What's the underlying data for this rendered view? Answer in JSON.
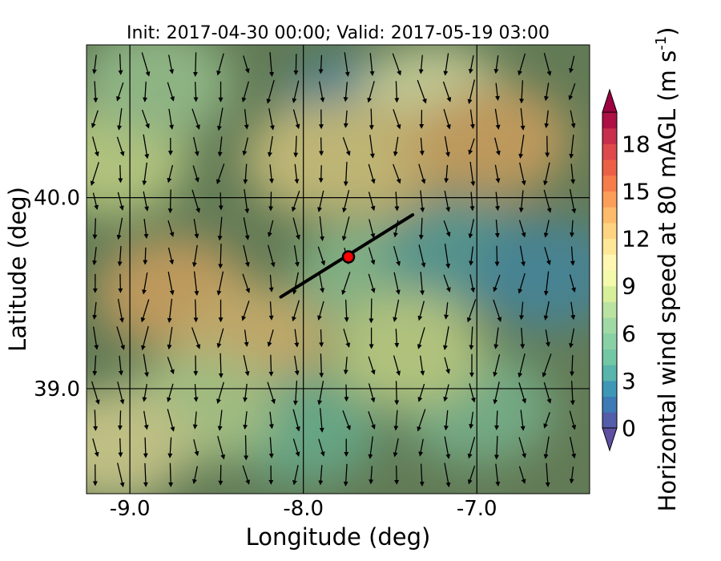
{
  "chart_data": {
    "type": "heatmap",
    "title": "Init: 2017-04-30 00:00; Valid: 2017-05-19 03:00",
    "xlabel": "Longitude (deg)",
    "ylabel": "Latitude (deg)",
    "xlim": [
      -9.25,
      -6.35
    ],
    "ylim": [
      38.45,
      40.8
    ],
    "x_ticks": [
      -9.0,
      -8.0,
      -7.0
    ],
    "x_tick_labels": [
      "-9.0",
      "-8.0",
      "-7.0"
    ],
    "y_ticks": [
      39.0,
      40.0
    ],
    "y_tick_labels": [
      "39.0",
      "40.0"
    ],
    "grid": true,
    "colorbar": {
      "label": "Horizontal wind speed at 80 mAGL (m s",
      "label_sup": "-1",
      "label_close": ")",
      "min": 0,
      "max": 20,
      "step": 1,
      "extend": "both",
      "ticks": [
        0,
        3,
        6,
        9,
        12,
        15,
        18
      ],
      "tick_labels": [
        "0",
        "3",
        "6",
        "9",
        "12",
        "15",
        "18"
      ],
      "colormap": "Spectral_r"
    },
    "transect": {
      "start": [
        -8.13,
        39.48
      ],
      "end": [
        -7.37,
        39.91
      ],
      "color": "#000000"
    },
    "site_marker": {
      "lon": -7.74,
      "lat": 39.69,
      "fill": "#ff0000",
      "edge": "#000000"
    },
    "wind_vectors": {
      "lon_range": [
        -9.2,
        -6.45
      ],
      "lat_range": [
        38.55,
        40.7
      ],
      "mean_direction": "from north",
      "color": "#000000"
    },
    "speed_regions": [
      {
        "lon": -9.1,
        "lat": 40.2,
        "speed": 9
      },
      {
        "lon": -8.85,
        "lat": 40.6,
        "speed": 7
      },
      {
        "lon": -8.75,
        "lat": 39.5,
        "speed": 14
      },
      {
        "lon": -8.3,
        "lat": 39.25,
        "speed": 13
      },
      {
        "lon": -7.7,
        "lat": 40.45,
        "speed": 2
      },
      {
        "lon": -7.25,
        "lat": 40.5,
        "speed": 10
      },
      {
        "lon": -7.6,
        "lat": 40.2,
        "speed": 13
      },
      {
        "lon": -6.9,
        "lat": 40.3,
        "speed": 14
      },
      {
        "lon": -7.9,
        "lat": 40.2,
        "speed": 12
      },
      {
        "lon": -7.6,
        "lat": 39.6,
        "speed": 6
      },
      {
        "lon": -7.1,
        "lat": 39.7,
        "speed": 3
      },
      {
        "lon": -6.6,
        "lat": 39.6,
        "speed": 2
      },
      {
        "lon": -8.0,
        "lat": 38.8,
        "speed": 4
      },
      {
        "lon": -7.0,
        "lat": 38.9,
        "speed": 5
      },
      {
        "lon": -8.6,
        "lat": 38.9,
        "speed": 8
      },
      {
        "lon": -9.1,
        "lat": 38.7,
        "speed": 11
      },
      {
        "lon": -7.4,
        "lat": 39.2,
        "speed": 9
      }
    ]
  }
}
